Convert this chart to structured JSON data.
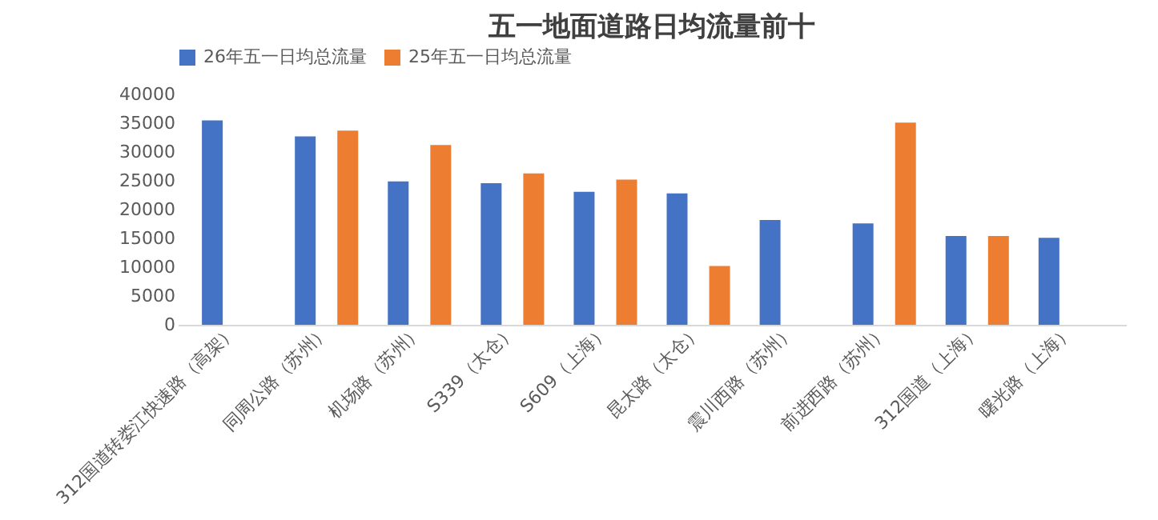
{
  "chart_data": {
    "type": "bar",
    "title": "五一地面道路日均流量前十",
    "categories": [
      "312国道转娄江快速路（高架）",
      "同周公路（苏州）",
      "机场路（苏州）",
      "S339（太仓）",
      "S609（上海）",
      "昆太路（太仓）",
      "震川西路（苏州）",
      "前进西路（苏州）",
      "312国道（上海）",
      "曙光路（上海）"
    ],
    "series": [
      {
        "name": "26年五一日均总流量",
        "color": "#4472c4",
        "values": [
          35500,
          32700,
          24900,
          24600,
          23100,
          22800,
          18200,
          17600,
          15400,
          15100
        ]
      },
      {
        "name": "25年五一日均总流量",
        "color": "#ed7d31",
        "values": [
          null,
          33700,
          31200,
          26300,
          25200,
          10200,
          null,
          35100,
          15400,
          null
        ]
      }
    ],
    "ylim": [
      0,
      40000
    ],
    "yticks": [
      0,
      5000,
      10000,
      15000,
      20000,
      25000,
      30000,
      35000,
      40000
    ],
    "grid": false,
    "legend": "top"
  }
}
